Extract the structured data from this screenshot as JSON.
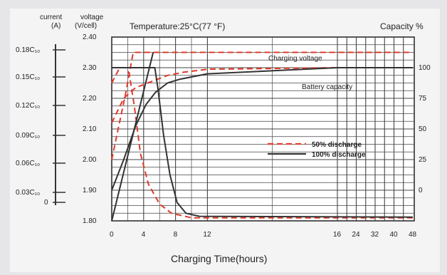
{
  "chart_data": {
    "type": "line",
    "title": "Temperature:25°C(77 °F)",
    "xlabel": "Charging Time(hours)",
    "left_axis_headers": {
      "current": "current\n(A)",
      "voltage": "voltage\n(V/cell)"
    },
    "right_axis_header": "Capacity %",
    "x_ticks": [
      "0",
      "4",
      "8",
      "12",
      "16",
      "24",
      "32",
      "40",
      "48"
    ],
    "current_ticks": [
      "0.18C₁₀",
      "0.15C₁₀",
      "0.12C₁₀",
      "0.09C₁₀",
      "0.06C₁₀",
      "0.03C₁₀",
      "0"
    ],
    "voltage_ticks": [
      "2.40",
      "2.30",
      "2.20",
      "2.10",
      "2.00",
      "1.90",
      "1.80"
    ],
    "capacity_ticks": [
      "100",
      "75",
      "50",
      "25",
      "0"
    ],
    "annotations": {
      "charging_voltage": "Charging voltage",
      "battery_capacity": "Battery capacity"
    },
    "legend": {
      "position": "center-right"
    },
    "series": [
      {
        "name": "50% discharge",
        "color": "#e03a2a",
        "dash": true,
        "axis": "voltage",
        "curve": "voltage",
        "points": [
          [
            0,
            2.0
          ],
          [
            0.8,
            2.1
          ],
          [
            1.7,
            2.21
          ],
          [
            2.2,
            2.28
          ],
          [
            2.7,
            2.35
          ],
          [
            5,
            2.35
          ],
          [
            48,
            2.35
          ]
        ]
      },
      {
        "name": "50% discharge",
        "color": "#e03a2a",
        "dash": true,
        "axis": "voltage",
        "curve": "capacity",
        "points": [
          [
            0,
            2.12
          ],
          [
            1.5,
            2.2
          ],
          [
            3,
            2.235
          ],
          [
            5,
            2.255
          ],
          [
            7,
            2.275
          ],
          [
            9,
            2.285
          ],
          [
            12,
            2.295
          ],
          [
            16,
            2.3
          ],
          [
            48,
            2.3
          ]
        ]
      },
      {
        "name": "50% discharge",
        "color": "#e03a2a",
        "dash": true,
        "axis": "voltage",
        "curve": "current",
        "points": [
          [
            0,
            2.25
          ],
          [
            1,
            2.3
          ],
          [
            1.8,
            2.3
          ],
          [
            2.2,
            2.28
          ],
          [
            2.8,
            2.18
          ],
          [
            3.6,
            2.02
          ],
          [
            4.6,
            1.92
          ],
          [
            6,
            1.855
          ],
          [
            7.5,
            1.825
          ],
          [
            10,
            1.81
          ],
          [
            48,
            1.81
          ]
        ]
      },
      {
        "name": "100% discharge",
        "color": "#333333",
        "dash": false,
        "axis": "voltage",
        "curve": "voltage",
        "points": [
          [
            0,
            1.8
          ],
          [
            5.2,
            2.35
          ]
        ]
      },
      {
        "name": "100% discharge",
        "color": "#333333",
        "dash": false,
        "axis": "voltage",
        "curve": "capacity",
        "points": [
          [
            0,
            1.9
          ],
          [
            1.5,
            2.0
          ],
          [
            3,
            2.11
          ],
          [
            4.3,
            2.18
          ],
          [
            5.5,
            2.22
          ],
          [
            7,
            2.25
          ],
          [
            8.5,
            2.262
          ],
          [
            12,
            2.28
          ],
          [
            16,
            2.3
          ],
          [
            48,
            2.3
          ]
        ]
      },
      {
        "name": "100% discharge",
        "color": "#333333",
        "dash": false,
        "axis": "voltage",
        "curve": "current",
        "points": [
          [
            0,
            2.3
          ],
          [
            5.4,
            2.3
          ],
          [
            5.8,
            2.23
          ],
          [
            6.5,
            2.08
          ],
          [
            7.3,
            1.95
          ],
          [
            8.2,
            1.86
          ],
          [
            9.3,
            1.825
          ],
          [
            11,
            1.815
          ],
          [
            48,
            1.812
          ]
        ]
      }
    ],
    "legend_entries": [
      {
        "label": "50% discharge",
        "color": "#e03a2a",
        "text_color": "#d8301f",
        "dash": true
      },
      {
        "label": "100% discharge",
        "color": "#333333",
        "text_color": "#2b9a3a",
        "dash": false
      }
    ]
  }
}
